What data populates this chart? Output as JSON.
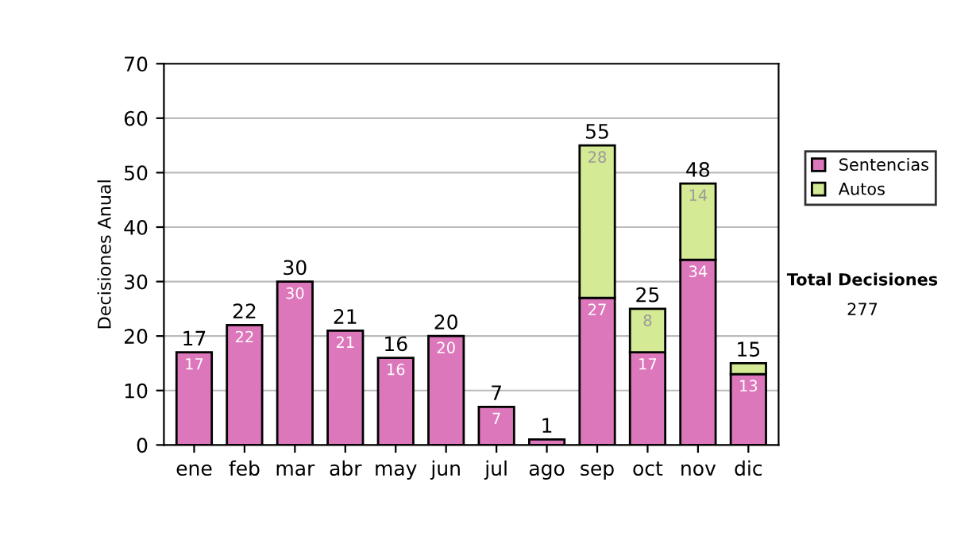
{
  "chart_data": {
    "type": "bar",
    "stacked": true,
    "ylabel": "Decisiones Anual",
    "categories": [
      "ene",
      "feb",
      "mar",
      "abr",
      "may",
      "jun",
      "jul",
      "ago",
      "sep",
      "oct",
      "nov",
      "dic"
    ],
    "series": [
      {
        "name": "Sentencias",
        "color": "#dd77bb",
        "values": [
          17,
          22,
          30,
          21,
          16,
          20,
          7,
          1,
          27,
          17,
          34,
          13
        ],
        "value_labels": [
          "17",
          "22",
          "30",
          "21",
          "16",
          "20",
          "7",
          null,
          "27",
          "17",
          "34",
          "13"
        ]
      },
      {
        "name": "Autos",
        "color": "#d4ea94",
        "values": [
          null,
          null,
          null,
          null,
          null,
          null,
          null,
          null,
          28,
          8,
          14,
          2
        ],
        "value_labels": [
          null,
          null,
          null,
          null,
          null,
          null,
          null,
          null,
          "28",
          "8",
          "14",
          null
        ]
      }
    ],
    "totals": [
      "17",
      "22",
      "30",
      "21",
      "16",
      "20",
      "7",
      "1",
      "55",
      "25",
      "48",
      "15"
    ],
    "ylim": [
      0,
      70
    ],
    "yticks": [
      0,
      10,
      20,
      30,
      40,
      50,
      60,
      70
    ],
    "grid": "y",
    "legend": "right",
    "annotations": [
      "Total Decisiones",
      "277"
    ]
  }
}
